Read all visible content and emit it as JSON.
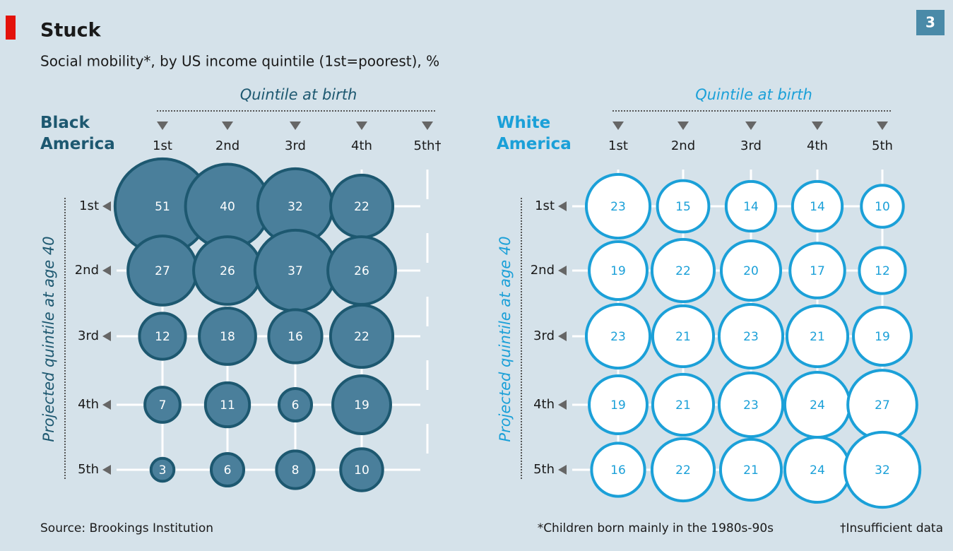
{
  "title": "Stuck",
  "subtitle": "Social mobility*, by US income quintile (1st=poorest), %",
  "badge": "3",
  "source": "Source: Brookings Institution",
  "notes": [
    "*Children born mainly in the 1980s-90s",
    "†Insufficient data"
  ],
  "chart_data": [
    {
      "type": "bubble",
      "title": "Black America",
      "x_label": "Quintile at birth",
      "y_label": "Projected quintile at age 40",
      "columns": [
        "1st",
        "2nd",
        "3rd",
        "4th",
        "5th†"
      ],
      "rows": [
        "1st",
        "2nd",
        "3rd",
        "4th",
        "5th"
      ],
      "values": [
        [
          51,
          40,
          32,
          22,
          null
        ],
        [
          27,
          26,
          37,
          26,
          null
        ],
        [
          12,
          18,
          16,
          22,
          null
        ],
        [
          7,
          11,
          6,
          19,
          null
        ],
        [
          3,
          6,
          8,
          10,
          null
        ]
      ],
      "color": "#4a7f9b",
      "edge_color": "#1d5870",
      "label_color": "#ffffff",
      "title_color": "#1d5870"
    },
    {
      "type": "bubble",
      "title": "White America",
      "x_label": "Quintile at birth",
      "y_label": "Projected quintile at age 40",
      "columns": [
        "1st",
        "2nd",
        "3rd",
        "4th",
        "5th"
      ],
      "rows": [
        "1st",
        "2nd",
        "3rd",
        "4th",
        "5th"
      ],
      "values": [
        [
          23,
          15,
          14,
          14,
          10
        ],
        [
          19,
          22,
          20,
          17,
          12
        ],
        [
          23,
          21,
          23,
          21,
          19
        ],
        [
          19,
          21,
          23,
          24,
          27
        ],
        [
          16,
          22,
          21,
          24,
          32
        ]
      ],
      "color": "#ffffff",
      "edge_color": "#1ba0d8",
      "label_color": "#1ba0d8",
      "title_color": "#1ba0d8"
    }
  ]
}
